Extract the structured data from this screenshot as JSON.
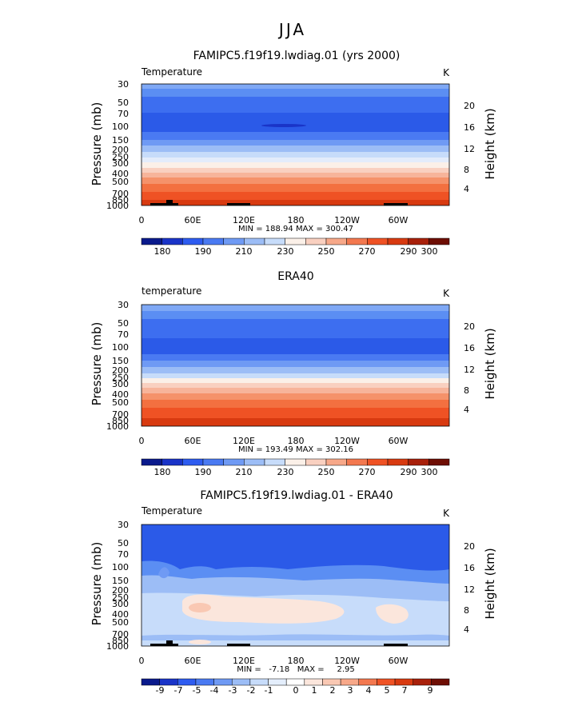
{
  "main_title": "JJA",
  "colors": {
    "temp_bar": [
      "#0a1a8c",
      "#1a34c8",
      "#2e5cf0",
      "#4a7af2",
      "#6f9af4",
      "#9cbdf6",
      "#c7dcfa",
      "#fbf0e8",
      "#f9d0c0",
      "#f7a889",
      "#f3784f",
      "#ef5224",
      "#d83a10",
      "#a8200a",
      "#6e0e04"
    ],
    "diff_bar": [
      "#0a1a8c",
      "#1a34c8",
      "#2e5cf0",
      "#4a7af2",
      "#6f9af4",
      "#9cbdf6",
      "#c7dcfa",
      "#e4eefc",
      "#ffffff",
      "#fbe6dc",
      "#f9c8b3",
      "#f7a889",
      "#f3784f",
      "#ef5224",
      "#d83a10",
      "#a8200a",
      "#6e0e04"
    ],
    "topo": "#000000"
  },
  "chart_data": [
    {
      "type": "heatmap",
      "title": "FAMIPC5.f19f19.lwdiag.01 (yrs 2000)",
      "variable": "Temperature",
      "units": "K",
      "ylabel": "Pressure (mb)",
      "ylabel_right": "Height (km)",
      "pressure_ticks": [
        30,
        50,
        70,
        100,
        150,
        200,
        250,
        300,
        400,
        500,
        700,
        850,
        1000
      ],
      "height_ticks": [
        20,
        16,
        12,
        8,
        4
      ],
      "x_ticks": [
        "0",
        "60E",
        "120E",
        "180",
        "120W",
        "60W"
      ],
      "x_tick_values": [
        0,
        60,
        120,
        180,
        240,
        300
      ],
      "xlim": [
        0,
        360
      ],
      "stats": "MIN = 188.94   MAX = 300.47",
      "colorbar_labels": [
        "180",
        "190",
        "210",
        "230",
        "250",
        "270",
        "290",
        "300"
      ],
      "levels": [
        30,
        50,
        70,
        100,
        150,
        200,
        250,
        300,
        400,
        500,
        700,
        850,
        1000
      ],
      "values": [
        210,
        205,
        200,
        196,
        206,
        218,
        226,
        232,
        250,
        262,
        275,
        288,
        298
      ]
    },
    {
      "type": "heatmap",
      "title": "ERA40",
      "variable": "temperature",
      "units": "K",
      "ylabel": "Pressure (mb)",
      "ylabel_right": "Height (km)",
      "pressure_ticks": [
        30,
        50,
        70,
        100,
        150,
        200,
        250,
        300,
        400,
        500,
        700,
        850,
        1000
      ],
      "height_ticks": [
        20,
        16,
        12,
        8,
        4
      ],
      "x_ticks": [
        "0",
        "60E",
        "120E",
        "180",
        "120W",
        "60W"
      ],
      "x_tick_values": [
        0,
        60,
        120,
        180,
        240,
        300
      ],
      "xlim": [
        0,
        360
      ],
      "stats": "MIN = 193.49   MAX = 302.16",
      "colorbar_labels": [
        "180",
        "190",
        "210",
        "230",
        "250",
        "270",
        "290",
        "300"
      ],
      "levels": [
        30,
        50,
        70,
        100,
        150,
        200,
        250,
        300,
        400,
        500,
        700,
        850,
        1000
      ],
      "values": [
        214,
        208,
        203,
        199,
        208,
        220,
        228,
        236,
        252,
        264,
        277,
        290,
        300
      ]
    },
    {
      "type": "heatmap",
      "title": "FAMIPC5.f19f19.lwdiag.01 - ERA40",
      "variable": "Temperature",
      "units": "K",
      "ylabel": "Pressure (mb)",
      "ylabel_right": "Height (km)",
      "pressure_ticks": [
        30,
        50,
        70,
        100,
        150,
        200,
        250,
        300,
        400,
        500,
        700,
        850,
        1000
      ],
      "height_ticks": [
        20,
        16,
        12,
        8,
        4
      ],
      "x_ticks": [
        "0",
        "60E",
        "120E",
        "180",
        "120W",
        "60W"
      ],
      "x_tick_values": [
        0,
        60,
        120,
        180,
        240,
        300
      ],
      "xlim": [
        0,
        360
      ],
      "stats": "MIN =   -7.18   MAX =     2.95",
      "colorbar_labels": [
        "-9",
        "-7",
        "-5",
        "-4",
        "-3",
        "-2",
        "-1",
        "0",
        "1",
        "2",
        "3",
        "4",
        "5",
        "7",
        "9"
      ],
      "levels": [
        30,
        50,
        70,
        100,
        150,
        200,
        250,
        300,
        400,
        500,
        700,
        850,
        1000
      ],
      "values": [
        -5.5,
        -6,
        -5,
        -4,
        -2.5,
        -1.5,
        -1,
        -0.5,
        0.5,
        -0.5,
        -0.5,
        -0.5,
        -0.5
      ]
    }
  ]
}
